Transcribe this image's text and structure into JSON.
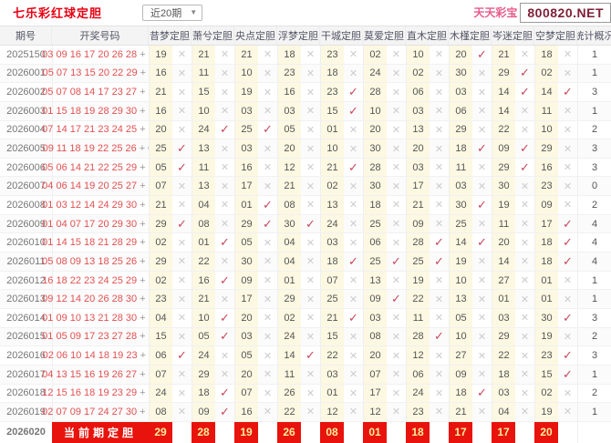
{
  "header": {
    "title": "七乐彩红球定胆",
    "range_select": "近20期",
    "site_name": "天天彩宝",
    "site_domain": "800820.NET"
  },
  "icons": {
    "check": "✓",
    "cross": "✕",
    "dropdown_arrow": "▼"
  },
  "colors": {
    "title_red": "#e60012",
    "accent_red": "#e8130c",
    "check_red": "#c8485c",
    "cross_gray": "#cccccc",
    "ball_red": "#e25050",
    "ball_blue": "#3b3bd6",
    "cell_yellow": "#fcf8e2",
    "site_pink": "#e85a8a",
    "domain_maroon": "#7d1f35",
    "current_number_yellow": "#ffef9b"
  },
  "table": {
    "col_period": "期号",
    "col_numbers": "开奖号码",
    "predictors": [
      "昔梦定胆",
      "萧兮定胆",
      "央点定胆",
      "浮梦定胆",
      "干城定胆",
      "莫爱定胆",
      "直木定胆",
      "木槿定胆",
      "岑迷定胆",
      "空梦定胆"
    ],
    "col_stats": "统计概况",
    "rows": [
      {
        "period": "2025150",
        "reds": "03 09 16 17 20 26 28",
        "blue": "23",
        "picks": [
          [
            "19",
            0
          ],
          [
            "21",
            0
          ],
          [
            "21",
            0
          ],
          [
            "18",
            0
          ],
          [
            "23",
            0
          ],
          [
            "02",
            0
          ],
          [
            "10",
            0
          ],
          [
            "20",
            1
          ],
          [
            "21",
            0
          ],
          [
            "18",
            0
          ]
        ],
        "stat": "1"
      },
      {
        "period": "2026001",
        "reds": "05 07 13 15 20 22 29",
        "blue": "11",
        "picks": [
          [
            "16",
            0
          ],
          [
            "11",
            0
          ],
          [
            "10",
            0
          ],
          [
            "23",
            0
          ],
          [
            "18",
            0
          ],
          [
            "24",
            0
          ],
          [
            "02",
            0
          ],
          [
            "30",
            0
          ],
          [
            "29",
            1
          ],
          [
            "02",
            0
          ]
        ],
        "stat": "1"
      },
      {
        "period": "2026002",
        "reds": "05 07 08 14 17 23 27",
        "blue": "29",
        "picks": [
          [
            "21",
            0
          ],
          [
            "15",
            0
          ],
          [
            "19",
            0
          ],
          [
            "16",
            0
          ],
          [
            "23",
            1
          ],
          [
            "28",
            0
          ],
          [
            "06",
            0
          ],
          [
            "03",
            0
          ],
          [
            "14",
            1
          ],
          [
            "14",
            1
          ]
        ],
        "stat": "3"
      },
      {
        "period": "2026003",
        "reds": "01 15 18 19 28 29 30",
        "blue": "22",
        "picks": [
          [
            "16",
            0
          ],
          [
            "10",
            0
          ],
          [
            "03",
            0
          ],
          [
            "03",
            0
          ],
          [
            "15",
            1
          ],
          [
            "10",
            0
          ],
          [
            "03",
            0
          ],
          [
            "06",
            0
          ],
          [
            "14",
            0
          ],
          [
            "11",
            0
          ]
        ],
        "stat": "1"
      },
      {
        "period": "2026004",
        "reds": "07 14 17 21 23 24 25",
        "blue": "19",
        "picks": [
          [
            "20",
            0
          ],
          [
            "24",
            1
          ],
          [
            "25",
            1
          ],
          [
            "05",
            0
          ],
          [
            "01",
            0
          ],
          [
            "20",
            0
          ],
          [
            "13",
            0
          ],
          [
            "29",
            0
          ],
          [
            "22",
            0
          ],
          [
            "10",
            0
          ]
        ],
        "stat": "2"
      },
      {
        "period": "2026005",
        "reds": "09 11 18 19 22 25 26",
        "blue": "08",
        "picks": [
          [
            "25",
            1
          ],
          [
            "13",
            0
          ],
          [
            "03",
            0
          ],
          [
            "20",
            0
          ],
          [
            "10",
            0
          ],
          [
            "30",
            0
          ],
          [
            "20",
            0
          ],
          [
            "18",
            1
          ],
          [
            "09",
            1
          ],
          [
            "29",
            0
          ]
        ],
        "stat": "3"
      },
      {
        "period": "2026006",
        "reds": "05 06 14 21 22 25 29",
        "blue": "28",
        "picks": [
          [
            "05",
            1
          ],
          [
            "11",
            0
          ],
          [
            "16",
            0
          ],
          [
            "12",
            0
          ],
          [
            "21",
            1
          ],
          [
            "28",
            0
          ],
          [
            "03",
            0
          ],
          [
            "11",
            0
          ],
          [
            "29",
            1
          ],
          [
            "16",
            0
          ]
        ],
        "stat": "3"
      },
      {
        "period": "2026007",
        "reds": "04 06 14 19 20 25 27",
        "blue": "29",
        "picks": [
          [
            "07",
            0
          ],
          [
            "13",
            0
          ],
          [
            "17",
            0
          ],
          [
            "21",
            0
          ],
          [
            "02",
            0
          ],
          [
            "30",
            0
          ],
          [
            "17",
            0
          ],
          [
            "03",
            0
          ],
          [
            "30",
            0
          ],
          [
            "23",
            0
          ]
        ],
        "stat": "0"
      },
      {
        "period": "2026008",
        "reds": "01 03 12 14 24 29 30",
        "blue": "19",
        "picks": [
          [
            "21",
            0
          ],
          [
            "04",
            0
          ],
          [
            "01",
            1
          ],
          [
            "08",
            0
          ],
          [
            "13",
            0
          ],
          [
            "18",
            0
          ],
          [
            "21",
            0
          ],
          [
            "30",
            1
          ],
          [
            "19",
            0
          ],
          [
            "09",
            0
          ]
        ],
        "stat": "2"
      },
      {
        "period": "2026009",
        "reds": "01 04 07 17 20 29 30",
        "blue": "19",
        "picks": [
          [
            "29",
            1
          ],
          [
            "08",
            0
          ],
          [
            "29",
            1
          ],
          [
            "30",
            1
          ],
          [
            "24",
            0
          ],
          [
            "25",
            0
          ],
          [
            "09",
            0
          ],
          [
            "25",
            0
          ],
          [
            "11",
            0
          ],
          [
            "17",
            1
          ]
        ],
        "stat": "4"
      },
      {
        "period": "2026010",
        "reds": "01 14 15 18 21 28 29",
        "blue": "24",
        "picks": [
          [
            "02",
            0
          ],
          [
            "01",
            1
          ],
          [
            "05",
            0
          ],
          [
            "04",
            0
          ],
          [
            "03",
            0
          ],
          [
            "06",
            0
          ],
          [
            "28",
            1
          ],
          [
            "14",
            1
          ],
          [
            "20",
            0
          ],
          [
            "18",
            1
          ]
        ],
        "stat": "4"
      },
      {
        "period": "2026011",
        "reds": "05 08 09 13 18 25 26",
        "blue": "20",
        "picks": [
          [
            "29",
            0
          ],
          [
            "22",
            0
          ],
          [
            "30",
            0
          ],
          [
            "04",
            0
          ],
          [
            "18",
            1
          ],
          [
            "25",
            1
          ],
          [
            "25",
            1
          ],
          [
            "19",
            0
          ],
          [
            "14",
            0
          ],
          [
            "18",
            1
          ]
        ],
        "stat": "4"
      },
      {
        "period": "2026012",
        "reds": "16 18 22 23 24 25 29",
        "blue": "07",
        "picks": [
          [
            "02",
            0
          ],
          [
            "16",
            1
          ],
          [
            "09",
            0
          ],
          [
            "01",
            0
          ],
          [
            "07",
            0
          ],
          [
            "13",
            0
          ],
          [
            "19",
            0
          ],
          [
            "10",
            0
          ],
          [
            "27",
            0
          ],
          [
            "01",
            0
          ]
        ],
        "stat": "1"
      },
      {
        "period": "2026013",
        "reds": "09 12 14 20 26 28 30",
        "blue": "27",
        "picks": [
          [
            "23",
            0
          ],
          [
            "21",
            0
          ],
          [
            "17",
            0
          ],
          [
            "29",
            0
          ],
          [
            "25",
            0
          ],
          [
            "09",
            1
          ],
          [
            "22",
            0
          ],
          [
            "13",
            0
          ],
          [
            "01",
            0
          ],
          [
            "01",
            0
          ]
        ],
        "stat": "1"
      },
      {
        "period": "2026014",
        "reds": "01 09 10 13 21 28 30",
        "blue": "04",
        "picks": [
          [
            "04",
            0
          ],
          [
            "10",
            1
          ],
          [
            "20",
            0
          ],
          [
            "02",
            0
          ],
          [
            "21",
            1
          ],
          [
            "03",
            0
          ],
          [
            "11",
            0
          ],
          [
            "05",
            0
          ],
          [
            "03",
            0
          ],
          [
            "30",
            1
          ]
        ],
        "stat": "3"
      },
      {
        "period": "2026015",
        "reds": "01 05 09 17 23 27 28",
        "blue": "30",
        "picks": [
          [
            "15",
            0
          ],
          [
            "05",
            1
          ],
          [
            "03",
            0
          ],
          [
            "24",
            0
          ],
          [
            "15",
            0
          ],
          [
            "08",
            0
          ],
          [
            "28",
            1
          ],
          [
            "10",
            0
          ],
          [
            "29",
            0
          ],
          [
            "19",
            0
          ]
        ],
        "stat": "2"
      },
      {
        "period": "2026016",
        "reds": "02 06 10 14 18 19 23",
        "blue": "11",
        "picks": [
          [
            "06",
            1
          ],
          [
            "24",
            0
          ],
          [
            "05",
            0
          ],
          [
            "14",
            1
          ],
          [
            "22",
            0
          ],
          [
            "20",
            0
          ],
          [
            "12",
            0
          ],
          [
            "27",
            0
          ],
          [
            "22",
            0
          ],
          [
            "23",
            1
          ]
        ],
        "stat": "3"
      },
      {
        "period": "2026017",
        "reds": "04 13 15 16 19 26 27",
        "blue": "18",
        "picks": [
          [
            "07",
            0
          ],
          [
            "29",
            0
          ],
          [
            "20",
            0
          ],
          [
            "11",
            0
          ],
          [
            "03",
            0
          ],
          [
            "07",
            0
          ],
          [
            "06",
            0
          ],
          [
            "09",
            0
          ],
          [
            "18",
            0
          ],
          [
            "15",
            1
          ]
        ],
        "stat": "1"
      },
      {
        "period": "2026018",
        "reds": "12 15 16 18 19 23 29",
        "blue": "26",
        "picks": [
          [
            "24",
            0
          ],
          [
            "18",
            1
          ],
          [
            "07",
            0
          ],
          [
            "26",
            0
          ],
          [
            "01",
            0
          ],
          [
            "17",
            0
          ],
          [
            "24",
            0
          ],
          [
            "18",
            1
          ],
          [
            "03",
            0
          ],
          [
            "02",
            0
          ]
        ],
        "stat": "2"
      },
      {
        "period": "2026019",
        "reds": "02 07 09 17 24 27 30",
        "blue": "08",
        "picks": [
          [
            "08",
            0
          ],
          [
            "09",
            1
          ],
          [
            "16",
            0
          ],
          [
            "22",
            0
          ],
          [
            "12",
            0
          ],
          [
            "12",
            0
          ],
          [
            "23",
            0
          ],
          [
            "21",
            0
          ],
          [
            "04",
            0
          ],
          [
            "19",
            0
          ]
        ],
        "stat": "1"
      }
    ],
    "current": {
      "period": "2026020",
      "label": "当前期定胆",
      "picks": [
        "29",
        "28",
        "19",
        "26",
        "08",
        "01",
        "18",
        "17",
        "17",
        "20"
      ]
    }
  }
}
